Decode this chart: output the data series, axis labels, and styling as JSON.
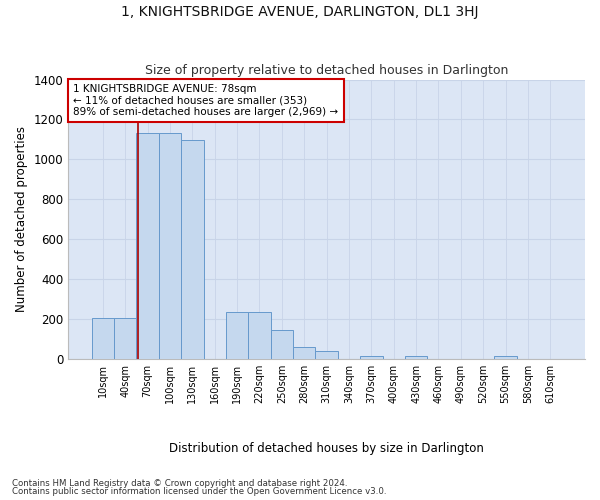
{
  "title": "1, KNIGHTSBRIDGE AVENUE, DARLINGTON, DL1 3HJ",
  "subtitle": "Size of property relative to detached houses in Darlington",
  "xlabel": "Distribution of detached houses by size in Darlington",
  "ylabel": "Number of detached properties",
  "footer_line1": "Contains HM Land Registry data © Crown copyright and database right 2024.",
  "footer_line2": "Contains public sector information licensed under the Open Government Licence v3.0.",
  "categories": [
    "10sqm",
    "40sqm",
    "70sqm",
    "100sqm",
    "130sqm",
    "160sqm",
    "190sqm",
    "220sqm",
    "250sqm",
    "280sqm",
    "310sqm",
    "340sqm",
    "370sqm",
    "400sqm",
    "430sqm",
    "460sqm",
    "490sqm",
    "520sqm",
    "550sqm",
    "580sqm",
    "610sqm"
  ],
  "values": [
    207,
    207,
    1130,
    1130,
    1095,
    0,
    235,
    235,
    145,
    60,
    40,
    0,
    15,
    0,
    15,
    0,
    0,
    0,
    15,
    0,
    0
  ],
  "bar_color": "#c5d8ee",
  "bar_edge_color": "#6699cc",
  "grid_color": "#c8d4e8",
  "background_color": "#dce6f5",
  "vline_color": "#aa0000",
  "annotation_text": "1 KNIGHTSBRIDGE AVENUE: 78sqm\n← 11% of detached houses are smaller (353)\n89% of semi-detached houses are larger (2,969) →",
  "annotation_box_color": "white",
  "annotation_box_edge": "#cc0000",
  "ylim": [
    0,
    1400
  ],
  "yticks": [
    0,
    200,
    400,
    600,
    800,
    1000,
    1200,
    1400
  ],
  "title_fontsize": 10,
  "subtitle_fontsize": 9,
  "vline_x_index": 2,
  "vline_x_offset": -0.43
}
